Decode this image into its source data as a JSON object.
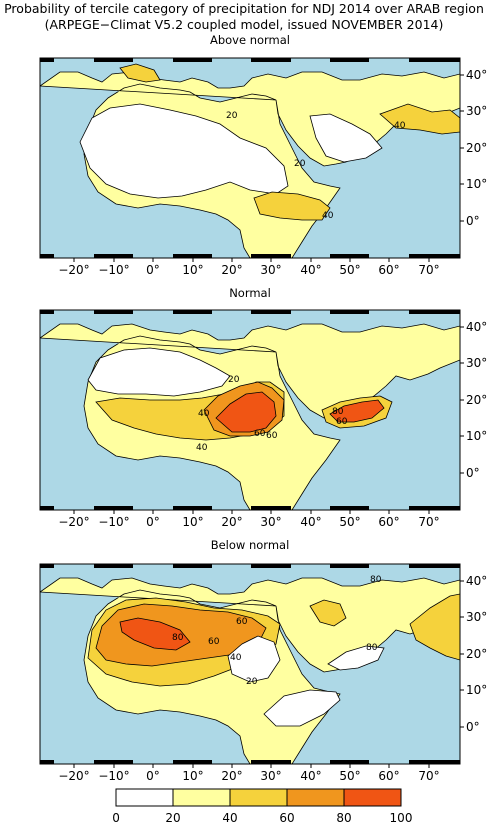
{
  "title": "Probability of tercile category of precipitation for NDJ 2014 over ARAB region",
  "subtitle": "(ARPEGE−Climat V5.2 coupled model, issued NOVEMBER 2014)",
  "lon_labels": [
    "−20°",
    "−10°",
    "0°",
    "10°",
    "20°",
    "30°",
    "40°",
    "50°",
    "60°",
    "70°"
  ],
  "lat_labels": [
    "40°",
    "30°",
    "20°",
    "10°",
    "0°"
  ],
  "colors": {
    "ocean": "#add8e6",
    "c0_20": "#ffffff",
    "c20_40": "#ffffa0",
    "c40_60": "#f5d23c",
    "c60_80": "#f0961e",
    "c80_100": "#f05514"
  },
  "panels": [
    {
      "title": "Above normal",
      "contour_labels": [
        "20",
        "20",
        "40",
        "40"
      ]
    },
    {
      "title": "Normal",
      "contour_labels": [
        "20",
        "40",
        "60",
        "60",
        "40",
        "80",
        "60"
      ]
    },
    {
      "title": "Below normal",
      "contour_labels": [
        "60",
        "80",
        "60",
        "40",
        "20",
        "80",
        "80"
      ]
    }
  ],
  "colorbar": {
    "ticks": [
      "0",
      "20",
      "40",
      "60",
      "80",
      "100"
    ]
  }
}
